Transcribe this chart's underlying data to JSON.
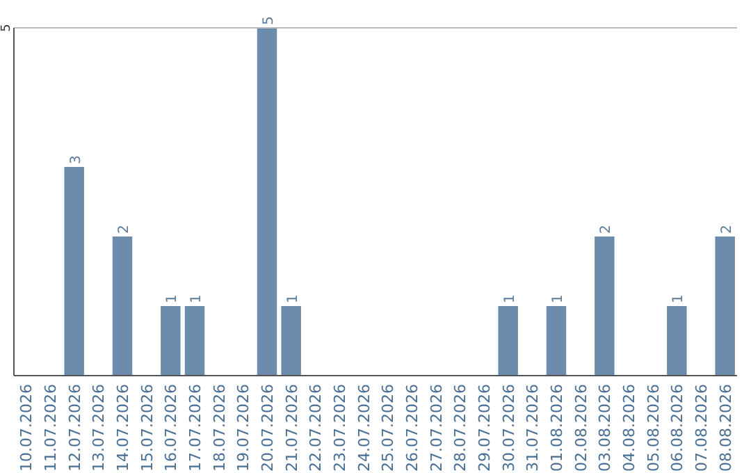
{
  "chart_data": {
    "type": "bar",
    "categories": [
      "10.07.2026",
      "11.07.2026",
      "12.07.2026",
      "13.07.2026",
      "14.07.2026",
      "15.07.2026",
      "16.07.2026",
      "17.07.2026",
      "18.07.2026",
      "19.07.2026",
      "20.07.2026",
      "21.07.2026",
      "22.07.2026",
      "23.07.2026",
      "24.07.2026",
      "25.07.2026",
      "26.07.2026",
      "27.07.2026",
      "28.07.2026",
      "29.07.2026",
      "30.07.2026",
      "31.07.2026",
      "01.08.2026",
      "02.08.2026",
      "03.08.2026",
      "04.08.2026",
      "05.08.2026",
      "06.08.2026",
      "07.08.2026",
      "08.08.2026"
    ],
    "values": [
      0,
      0,
      3,
      0,
      2,
      0,
      1,
      1,
      0,
      0,
      5,
      1,
      0,
      0,
      0,
      0,
      0,
      0,
      0,
      0,
      1,
      0,
      1,
      0,
      2,
      0,
      0,
      1,
      0,
      2
    ],
    "value_labels": [
      null,
      null,
      "3",
      null,
      "2",
      null,
      "1",
      "1",
      null,
      null,
      "5",
      "1",
      null,
      null,
      null,
      null,
      null,
      null,
      null,
      null,
      "1",
      null,
      "1",
      null,
      "2",
      null,
      null,
      "1",
      null,
      "2"
    ],
    "color": "#6a8bab",
    "ylim": [
      0,
      5
    ],
    "yticks": [
      5
    ]
  }
}
